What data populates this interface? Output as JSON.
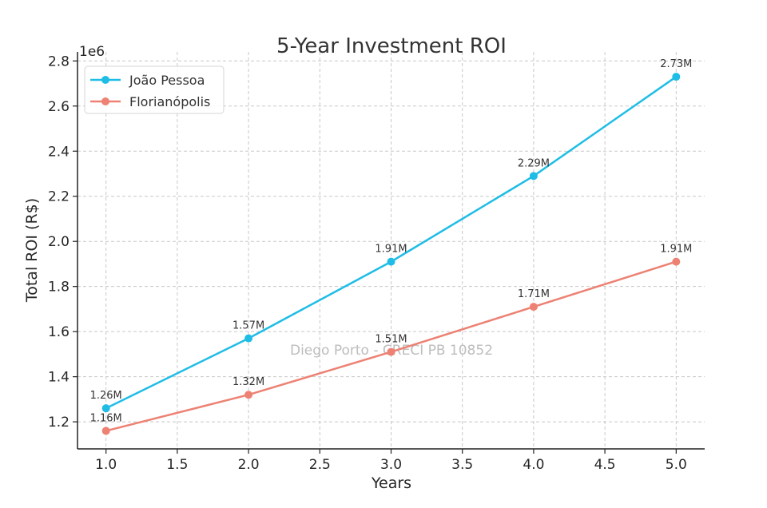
{
  "chart_data": {
    "type": "line",
    "title": "5-Year Investment ROI",
    "xlabel": "Years",
    "ylabel": "Total ROI (R$)",
    "y_offset_label": "1e6",
    "xlim": [
      0.8,
      5.2
    ],
    "ylim": [
      1.08,
      2.84
    ],
    "x_ticks": [
      1.0,
      1.5,
      2.0,
      2.5,
      3.0,
      3.5,
      4.0,
      4.5,
      5.0
    ],
    "x_tick_labels": [
      "1.0",
      "1.5",
      "2.0",
      "2.5",
      "3.0",
      "3.5",
      "4.0",
      "4.5",
      "5.0"
    ],
    "y_ticks": [
      1.2,
      1.4,
      1.6,
      1.8,
      2.0,
      2.2,
      2.4,
      2.6,
      2.8
    ],
    "y_tick_labels": [
      "1.2",
      "1.4",
      "1.6",
      "1.8",
      "2.0",
      "2.2",
      "2.4",
      "2.6",
      "2.8"
    ],
    "grid": true,
    "legend_position": "top-left",
    "x": [
      1,
      2,
      3,
      4,
      5
    ],
    "series": [
      {
        "name": "João Pessoa",
        "color": "#1fbde6",
        "values": [
          1.26,
          1.57,
          1.91,
          2.29,
          2.73
        ],
        "labels": [
          "1.26M",
          "1.57M",
          "1.91M",
          "2.29M",
          "2.73M"
        ]
      },
      {
        "name": "Florianópolis",
        "color": "#ed8173",
        "values": [
          1.16,
          1.32,
          1.51,
          1.71,
          1.91
        ],
        "labels": [
          "1.16M",
          "1.32M",
          "1.51M",
          "1.71M",
          "1.91M"
        ]
      }
    ],
    "watermark": "Diego Porto - CRECI PB 10852"
  }
}
